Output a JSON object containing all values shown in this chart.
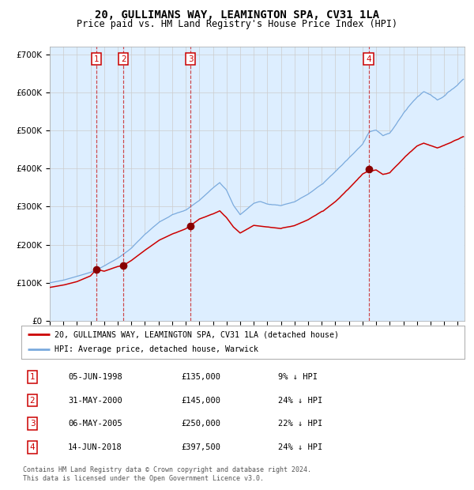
{
  "title": "20, GULLIMANS WAY, LEAMINGTON SPA, CV31 1LA",
  "subtitle": "Price paid vs. HM Land Registry's House Price Index (HPI)",
  "sales": [
    {
      "num": 1,
      "date_str": "05-JUN-1998",
      "year": 1998.43,
      "price": 135000,
      "pct": "9%"
    },
    {
      "num": 2,
      "date_str": "31-MAY-2000",
      "year": 2000.41,
      "price": 145000,
      "pct": "24%"
    },
    {
      "num": 3,
      "date_str": "06-MAY-2005",
      "year": 2005.34,
      "price": 250000,
      "pct": "22%"
    },
    {
      "num": 4,
      "date_str": "14-JUN-2018",
      "year": 2018.45,
      "price": 397500,
      "pct": "24%"
    }
  ],
  "hpi_line_color": "#7aaadd",
  "hpi_fill_color": "#ddeeff",
  "price_line_color": "#cc0000",
  "marker_color": "#880000",
  "dashed_line_color": "#cc3333",
  "label_box_color": "#cc0000",
  "background_color": "#ffffff",
  "grid_color": "#cccccc",
  "ylim": [
    0,
    720000
  ],
  "xlim_start": 1995.0,
  "xlim_end": 2025.5,
  "legend_label_red": "20, GULLIMANS WAY, LEAMINGTON SPA, CV31 1LA (detached house)",
  "legend_label_blue": "HPI: Average price, detached house, Warwick",
  "footnote": "Contains HM Land Registry data © Crown copyright and database right 2024.\nThis data is licensed under the Open Government Licence v3.0.",
  "hpi_keypoints_years": [
    1995.0,
    1996.0,
    1997.0,
    1998.0,
    1999.0,
    2000.0,
    2001.0,
    2002.0,
    2003.0,
    2004.0,
    2005.0,
    2006.0,
    2007.0,
    2007.5,
    2008.0,
    2008.5,
    2009.0,
    2009.5,
    2010.0,
    2010.5,
    2011.0,
    2012.0,
    2013.0,
    2014.0,
    2015.0,
    2016.0,
    2017.0,
    2018.0,
    2018.5,
    2019.0,
    2019.5,
    2020.0,
    2020.5,
    2021.0,
    2021.5,
    2022.0,
    2022.5,
    2023.0,
    2023.5,
    2024.0,
    2024.5,
    2025.0,
    2025.4
  ],
  "hpi_keypoints_vals": [
    100000,
    107000,
    117000,
    128000,
    145000,
    165000,
    192000,
    228000,
    258000,
    278000,
    290000,
    315000,
    350000,
    365000,
    345000,
    305000,
    280000,
    295000,
    310000,
    315000,
    308000,
    305000,
    315000,
    335000,
    360000,
    395000,
    430000,
    465000,
    500000,
    505000,
    490000,
    495000,
    520000,
    548000,
    570000,
    590000,
    605000,
    598000,
    585000,
    595000,
    610000,
    625000,
    640000
  ],
  "price_keypoints_years": [
    1995.0,
    1996.0,
    1997.0,
    1998.0,
    1998.43,
    1999.0,
    2000.0,
    2000.41,
    2001.0,
    2002.0,
    2003.0,
    2004.0,
    2005.0,
    2005.34,
    2006.0,
    2007.0,
    2007.5,
    2008.0,
    2008.5,
    2009.0,
    2009.5,
    2010.0,
    2011.0,
    2012.0,
    2013.0,
    2014.0,
    2015.0,
    2016.0,
    2017.0,
    2018.0,
    2018.45,
    2019.0,
    2019.5,
    2020.0,
    2020.5,
    2021.0,
    2021.5,
    2022.0,
    2022.5,
    2023.0,
    2023.5,
    2024.0,
    2024.5,
    2025.0,
    2025.4
  ],
  "price_keypoints_vals": [
    88000,
    94000,
    103000,
    118000,
    135000,
    130000,
    142000,
    145000,
    158000,
    185000,
    210000,
    228000,
    242000,
    250000,
    268000,
    282000,
    290000,
    272000,
    248000,
    232000,
    242000,
    252000,
    248000,
    244000,
    252000,
    268000,
    290000,
    318000,
    352000,
    390000,
    397500,
    400000,
    388000,
    392000,
    410000,
    428000,
    445000,
    460000,
    468000,
    462000,
    455000,
    462000,
    470000,
    478000,
    485000
  ],
  "table_rows": [
    [
      "1",
      "05-JUN-1998",
      "£135,000",
      "9% ↓ HPI"
    ],
    [
      "2",
      "31-MAY-2000",
      "£145,000",
      "24% ↓ HPI"
    ],
    [
      "3",
      "06-MAY-2005",
      "£250,000",
      "22% ↓ HPI"
    ],
    [
      "4",
      "14-JUN-2018",
      "£397,500",
      "24% ↓ HPI"
    ]
  ]
}
